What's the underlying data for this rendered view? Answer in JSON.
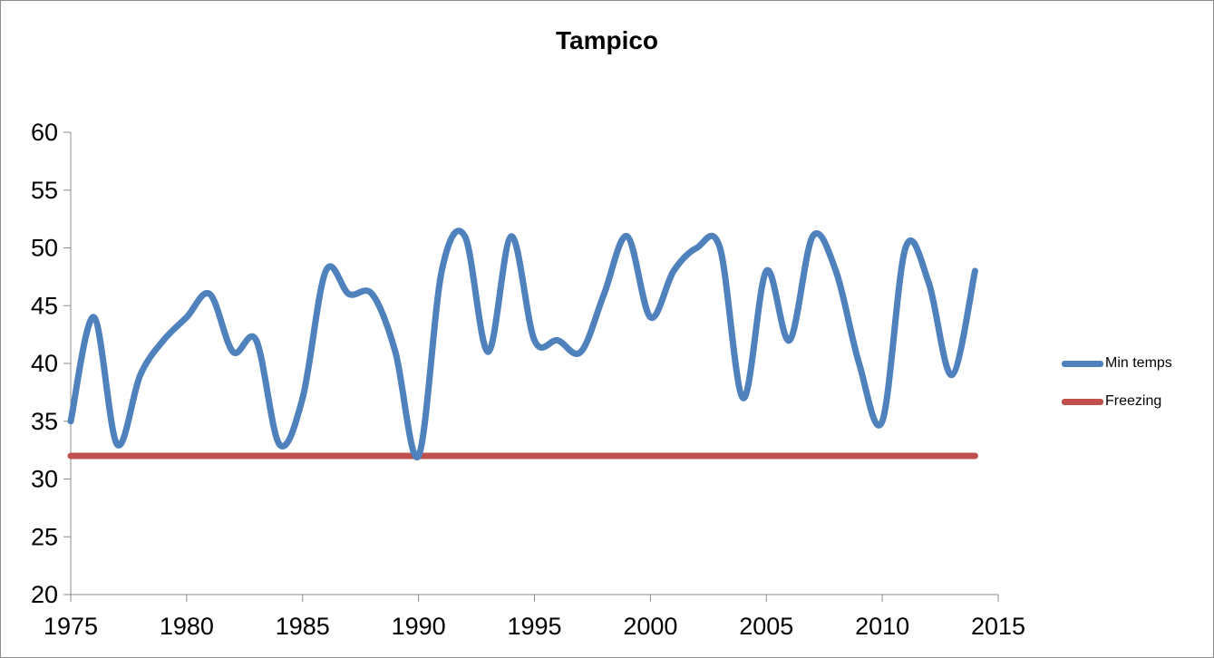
{
  "chart_data": {
    "type": "line",
    "title": "Tampico",
    "xlabel": "",
    "ylabel": "",
    "xlim": [
      1975,
      2015
    ],
    "ylim": [
      20,
      60
    ],
    "x_ticks": [
      1975,
      1980,
      1985,
      1990,
      1995,
      2000,
      2005,
      2010,
      2015
    ],
    "y_ticks": [
      20,
      25,
      30,
      35,
      40,
      45,
      50,
      55,
      60
    ],
    "grid": false,
    "legend_position": "right",
    "series": [
      {
        "name": "Min temps",
        "color": "#4f81bd",
        "x": [
          1975,
          1976,
          1977,
          1978,
          1979,
          1980,
          1981,
          1982,
          1983,
          1984,
          1985,
          1986,
          1987,
          1988,
          1989,
          1990,
          1991,
          1992,
          1993,
          1994,
          1995,
          1996,
          1997,
          1998,
          1999,
          2000,
          2001,
          2002,
          2003,
          2004,
          2005,
          2006,
          2007,
          2008,
          2009,
          2010,
          2011,
          2012,
          2013,
          2014
        ],
        "values": [
          35,
          44,
          33,
          39,
          42,
          44,
          46,
          41,
          42,
          33,
          37,
          48,
          46,
          46,
          41,
          32,
          48,
          51,
          41,
          51,
          42,
          42,
          41,
          46,
          51,
          44,
          48,
          50,
          50,
          37,
          48,
          42,
          51,
          48,
          40,
          35,
          50,
          47,
          39,
          48
        ]
      },
      {
        "name": "Freezing",
        "color": "#c0504d",
        "x": [
          1975,
          2014
        ],
        "values": [
          32,
          32
        ]
      }
    ]
  }
}
